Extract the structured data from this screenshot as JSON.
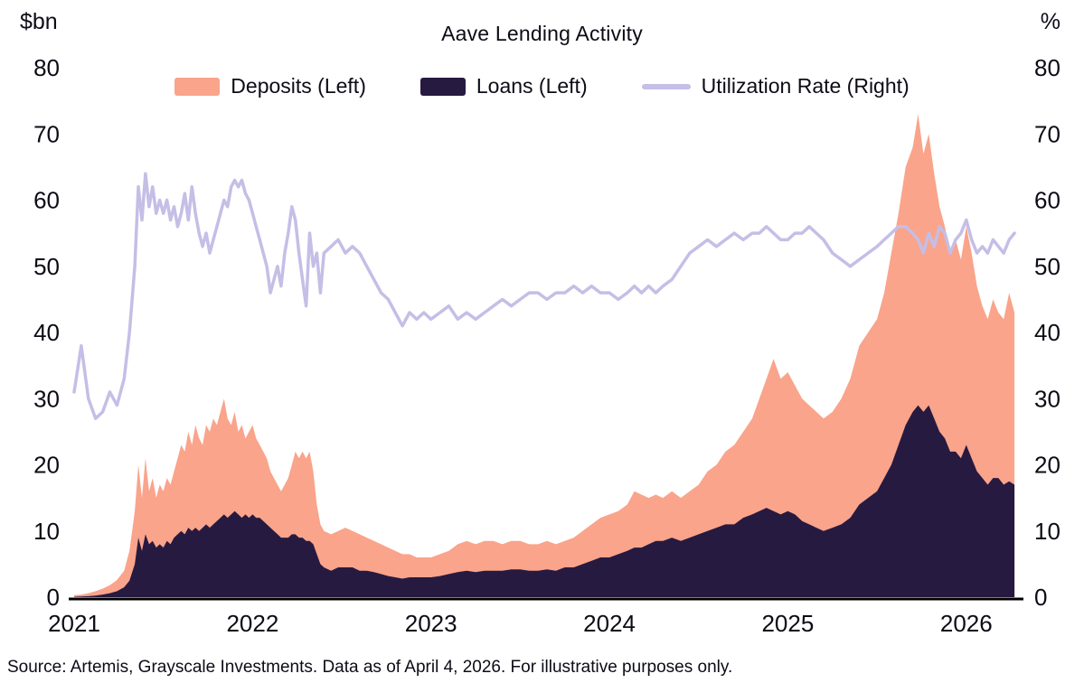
{
  "header": {
    "left_unit": "$bn",
    "title": "Aave Lending Activity",
    "right_unit": "%"
  },
  "legend": [
    {
      "label": "Deposits (Left)",
      "color": "#F9A48B",
      "type": "area"
    },
    {
      "label": "Loans (Left)",
      "color": "#271A40",
      "type": "area"
    },
    {
      "label": "Utilization Rate (Right)",
      "color": "#C5BEE6",
      "type": "line"
    }
  ],
  "source_note": "Source: Artemis, Grayscale Investments. Data as of April 4, 2026. For illustrative purposes only.",
  "chart_data": {
    "type": "area",
    "title": "Aave Lending Activity",
    "xlabel": "",
    "ylabel_left": "$bn",
    "ylabel_right": "%",
    "xlim": [
      2021,
      2026.3
    ],
    "left_ylim": [
      0,
      80
    ],
    "right_ylim": [
      0,
      80
    ],
    "yticks": [
      0,
      10,
      20,
      30,
      40,
      50,
      60,
      70,
      80
    ],
    "xticks": [
      2021,
      2022,
      2023,
      2024,
      2025,
      2026
    ],
    "grid": false,
    "legend_position": "top",
    "x": [
      2021.0,
      2021.04,
      2021.08,
      2021.12,
      2021.16,
      2021.2,
      2021.24,
      2021.28,
      2021.31,
      2021.34,
      2021.36,
      2021.38,
      2021.4,
      2021.42,
      2021.44,
      2021.46,
      2021.48,
      2021.5,
      2021.52,
      2021.54,
      2021.56,
      2021.58,
      2021.6,
      2021.62,
      2021.64,
      2021.66,
      2021.68,
      2021.7,
      2021.72,
      2021.74,
      2021.76,
      2021.78,
      2021.8,
      2021.82,
      2021.84,
      2021.86,
      2021.88,
      2021.9,
      2021.92,
      2021.94,
      2021.96,
      2021.98,
      2022.0,
      2022.02,
      2022.04,
      2022.06,
      2022.08,
      2022.1,
      2022.12,
      2022.14,
      2022.16,
      2022.18,
      2022.2,
      2022.22,
      2022.24,
      2022.26,
      2022.28,
      2022.3,
      2022.32,
      2022.34,
      2022.36,
      2022.38,
      2022.4,
      2022.44,
      2022.48,
      2022.52,
      2022.56,
      2022.6,
      2022.64,
      2022.68,
      2022.72,
      2022.76,
      2022.8,
      2022.84,
      2022.88,
      2022.92,
      2022.96,
      2023.0,
      2023.05,
      2023.1,
      2023.15,
      2023.2,
      2023.25,
      2023.3,
      2023.35,
      2023.4,
      2023.45,
      2023.5,
      2023.55,
      2023.6,
      2023.65,
      2023.7,
      2023.75,
      2023.8,
      2023.85,
      2023.9,
      2023.95,
      2024.0,
      2024.05,
      2024.1,
      2024.14,
      2024.18,
      2024.22,
      2024.26,
      2024.3,
      2024.35,
      2024.4,
      2024.45,
      2024.5,
      2024.55,
      2024.6,
      2024.65,
      2024.7,
      2024.75,
      2024.8,
      2024.84,
      2024.88,
      2024.92,
      2024.96,
      2025.0,
      2025.04,
      2025.08,
      2025.12,
      2025.16,
      2025.2,
      2025.25,
      2025.3,
      2025.35,
      2025.4,
      2025.45,
      2025.5,
      2025.54,
      2025.58,
      2025.62,
      2025.66,
      2025.7,
      2025.73,
      2025.76,
      2025.79,
      2025.82,
      2025.85,
      2025.88,
      2025.91,
      2025.94,
      2025.97,
      2026.0,
      2026.03,
      2026.06,
      2026.09,
      2026.12,
      2026.15,
      2026.18,
      2026.21,
      2026.24,
      2026.27
    ],
    "series": [
      {
        "name": "Deposits (Left)",
        "axis": "left",
        "type": "area",
        "color": "#F9A48B",
        "values": [
          0.3,
          0.4,
          0.6,
          0.9,
          1.3,
          1.8,
          2.6,
          4.0,
          7,
          13,
          20,
          15,
          21,
          16,
          18,
          15,
          17,
          16,
          18,
          17,
          19,
          21,
          23,
          22,
          25,
          23,
          26,
          24,
          23,
          26,
          25,
          27,
          26,
          28,
          30,
          27,
          26,
          28,
          25,
          26,
          24,
          25,
          26,
          24,
          23,
          22,
          21,
          19,
          18,
          17,
          16,
          17,
          18,
          20,
          22,
          21,
          22,
          21,
          22,
          19,
          14,
          11,
          10,
          9.5,
          10,
          10.5,
          10,
          9.5,
          9,
          8.5,
          8,
          7.5,
          7,
          6.5,
          6.5,
          6,
          6,
          6,
          6.5,
          7,
          8,
          8.5,
          8,
          8.5,
          8.5,
          8,
          8.5,
          8.5,
          8,
          8,
          8.5,
          8,
          8.5,
          9,
          10,
          11,
          12,
          12.5,
          13,
          14,
          16,
          15.5,
          15,
          15.5,
          15,
          16,
          15,
          16,
          17,
          19,
          20,
          22,
          23,
          25,
          27,
          30,
          33,
          36,
          33,
          34,
          32,
          30,
          29,
          28,
          27,
          28,
          30,
          33,
          38,
          40,
          42,
          46,
          52,
          58,
          65,
          68,
          73,
          67,
          70,
          64,
          59,
          56,
          52,
          54,
          51,
          56,
          52,
          47,
          44,
          42,
          45,
          43,
          42,
          46,
          43
        ]
      },
      {
        "name": "Loans (Left)",
        "axis": "left",
        "type": "area",
        "color": "#271A40",
        "values": [
          0.05,
          0.1,
          0.15,
          0.25,
          0.4,
          0.6,
          0.9,
          1.5,
          2.5,
          5,
          9,
          7,
          9.5,
          8,
          8.5,
          7.5,
          8,
          7.5,
          8.5,
          8,
          9,
          9.5,
          10,
          9.5,
          10.5,
          10,
          10.5,
          10,
          10.5,
          11,
          10.5,
          11,
          11.5,
          12,
          12.5,
          12,
          12.5,
          13,
          12.5,
          12,
          12.5,
          12,
          12.5,
          12,
          12,
          11.5,
          11,
          10.5,
          10,
          9.5,
          9,
          9,
          9,
          9.5,
          9.5,
          9,
          9,
          8.5,
          8.5,
          8,
          6.5,
          5,
          4.5,
          4,
          4.5,
          4.5,
          4.5,
          4,
          4,
          3.8,
          3.5,
          3.2,
          3,
          2.8,
          3,
          3,
          3,
          3,
          3.2,
          3.5,
          3.8,
          4,
          3.8,
          4,
          4,
          4,
          4.2,
          4.2,
          4,
          4,
          4.2,
          4,
          4.5,
          4.5,
          5,
          5.5,
          6,
          6,
          6.5,
          7,
          7.5,
          7.5,
          8,
          8.5,
          8.5,
          9,
          8.5,
          9,
          9.5,
          10,
          10.5,
          11,
          11,
          12,
          12.5,
          13,
          13.5,
          13,
          12.5,
          13,
          12.5,
          11.5,
          11,
          10.5,
          10,
          10.5,
          11,
          12,
          14,
          15,
          16,
          18,
          20,
          23,
          26,
          28,
          29,
          28,
          29,
          27,
          25,
          24,
          22,
          22,
          21,
          23,
          21,
          19,
          18,
          17,
          18,
          18,
          17,
          17.5,
          17
        ]
      },
      {
        "name": "Utilization Rate (Right)",
        "axis": "right",
        "type": "line",
        "color": "#C5BEE6",
        "values": [
          31,
          38,
          30,
          27,
          28,
          31,
          29,
          33,
          40,
          50,
          62,
          57,
          64,
          59,
          62,
          58,
          60,
          58,
          60,
          57,
          59,
          56,
          58,
          61,
          57,
          62,
          58,
          55,
          53,
          55,
          52,
          54,
          56,
          58,
          60,
          59,
          62,
          63,
          62,
          63,
          61,
          60,
          58,
          56,
          54,
          52,
          50,
          46,
          48,
          50,
          47,
          52,
          55,
          59,
          57,
          52,
          48,
          44,
          55,
          50,
          52,
          46,
          52,
          53,
          54,
          52,
          53,
          52,
          50,
          48,
          46,
          45,
          43,
          41,
          43,
          42,
          43,
          42,
          43,
          44,
          42,
          43,
          42,
          43,
          44,
          45,
          44,
          45,
          46,
          46,
          45,
          46,
          46,
          47,
          46,
          47,
          46,
          46,
          45,
          46,
          47,
          46,
          47,
          46,
          47,
          48,
          50,
          52,
          53,
          54,
          53,
          54,
          55,
          54,
          55,
          55,
          56,
          55,
          54,
          54,
          55,
          55,
          56,
          55,
          54,
          52,
          51,
          50,
          51,
          52,
          53,
          54,
          55,
          56,
          56,
          55,
          54,
          52,
          55,
          53,
          56,
          55,
          52,
          54,
          55,
          57,
          54,
          52,
          53,
          52,
          54,
          53,
          52,
          54,
          55
        ]
      }
    ],
    "source": "Source: Artemis, Grayscale Investments. Data as of April 4, 2026. For illustrative purposes only."
  }
}
